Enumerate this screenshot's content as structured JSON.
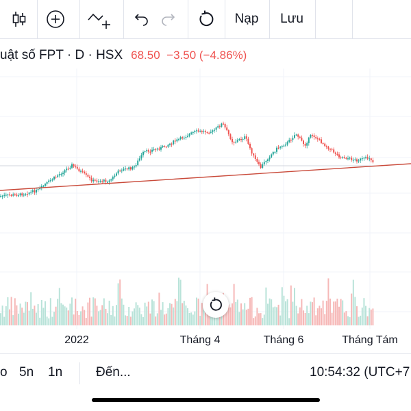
{
  "toolbar": {
    "candle_icon": "candlestick-icon",
    "add_icon": "plus-circle-icon",
    "indicator_icon": "indicator-plus-icon",
    "undo_icon": "undo-icon",
    "redo_icon": "redo-icon",
    "refresh_icon": "rotate-icon",
    "load_label": "Nạp",
    "save_label": "Lưu"
  },
  "legend": {
    "symbol_text": "uật số FPT · D · HSX",
    "price": "68.50",
    "change": "−3.50",
    "change_pct": "(−4.86%)",
    "down_color": "#ef5350"
  },
  "x_axis": {
    "labels": [
      "2022",
      "Tháng 4",
      "Tháng 6",
      "Tháng Tám"
    ]
  },
  "bottom_bar": {
    "range_partial": "o",
    "range_5y": "5n",
    "range_1y": "1n",
    "goto_label": "Đến...",
    "clock": "10:54:32 (UTC+7"
  },
  "colors": {
    "up": "#26a69a",
    "down": "#ef5350",
    "trendline": "#c94a3a",
    "grid": "#f0f3fa"
  }
}
